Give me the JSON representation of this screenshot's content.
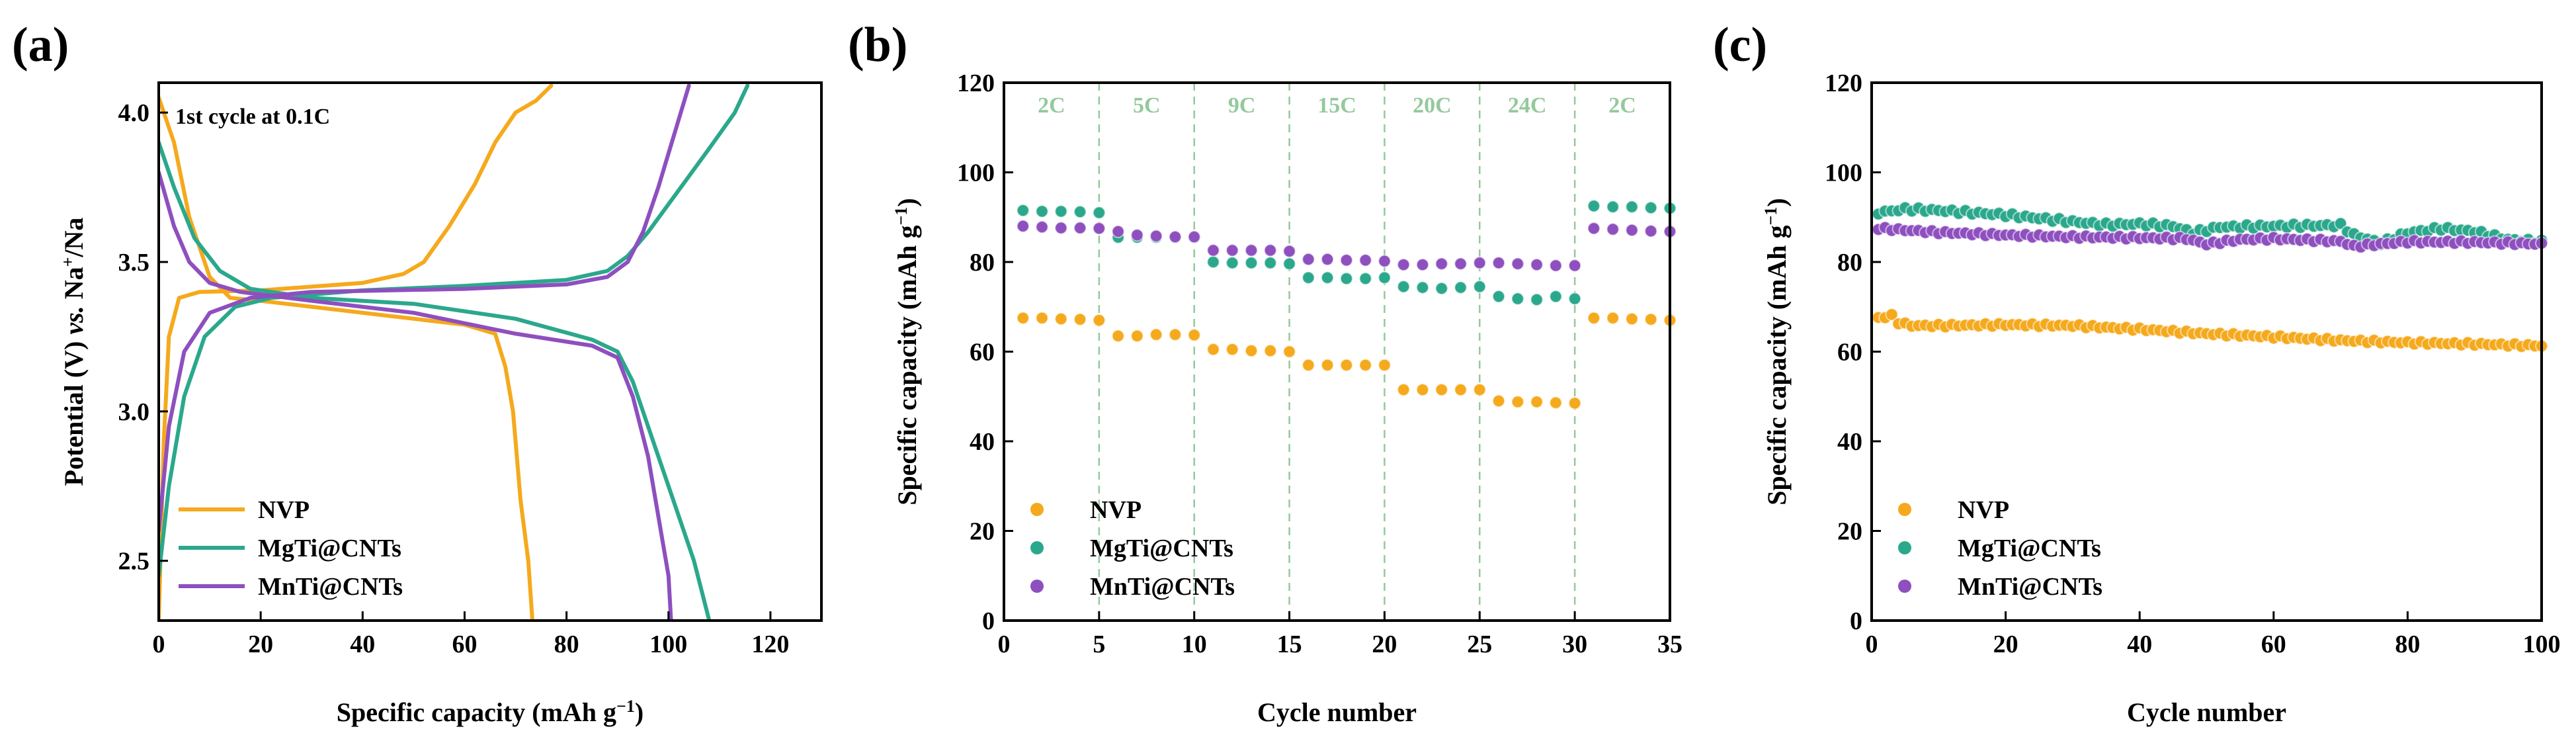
{
  "colors": {
    "NVP": "#F5A91C",
    "MgTi": "#2BA88C",
    "MnTi": "#8E4FBF",
    "rate": "#94C99C"
  },
  "chart_data": [
    {
      "panel": "(a)",
      "type": "line",
      "xlabel": "Specific capacity (mAh g",
      "xlabel_sup": "−1",
      "xlabel_end": ")",
      "ylabel_pre": "Potential (V) ",
      "ylabel_italic": "vs.",
      "ylabel_mid": " Na",
      "ylabel_sup": "+",
      "ylabel_end": "/Na",
      "xlim": [
        0,
        130
      ],
      "ylim": [
        2.3,
        4.1
      ],
      "xticks": [
        0,
        20,
        40,
        60,
        80,
        100,
        120
      ],
      "yticks": [
        2.5,
        3.0,
        3.5,
        4.0
      ],
      "ytick_labels": [
        "2.5",
        "3.0",
        "3.5",
        "4.0"
      ],
      "annotation": "1st cycle at 0.1C",
      "legend_position": "bottom-left",
      "series": [
        {
          "name": "NVP",
          "color_key": "NVP",
          "charge": [
            [
              0,
              2.3
            ],
            [
              1,
              2.9
            ],
            [
              2,
              3.25
            ],
            [
              4,
              3.38
            ],
            [
              8,
              3.4
            ],
            [
              20,
              3.405
            ],
            [
              40,
              3.43
            ],
            [
              48,
              3.46
            ],
            [
              52,
              3.5
            ],
            [
              57,
              3.62
            ],
            [
              62,
              3.76
            ],
            [
              66,
              3.9
            ],
            [
              70,
              4.0
            ],
            [
              74,
              4.04
            ],
            [
              77,
              4.09
            ]
          ],
          "discharge": [
            [
              0,
              4.05
            ],
            [
              3,
              3.9
            ],
            [
              6,
              3.65
            ],
            [
              10,
              3.45
            ],
            [
              14,
              3.38
            ],
            [
              20,
              3.37
            ],
            [
              30,
              3.35
            ],
            [
              45,
              3.32
            ],
            [
              60,
              3.29
            ],
            [
              66,
              3.26
            ],
            [
              68,
              3.15
            ],
            [
              69.5,
              3.0
            ],
            [
              71,
              2.7
            ],
            [
              72.5,
              2.5
            ],
            [
              73.3,
              2.3
            ]
          ]
        },
        {
          "name": "MgTi@CNTs",
          "color_key": "MgTi",
          "charge": [
            [
              0,
              2.45
            ],
            [
              2,
              2.75
            ],
            [
              5,
              3.05
            ],
            [
              9,
              3.25
            ],
            [
              15,
              3.35
            ],
            [
              22,
              3.38
            ],
            [
              40,
              3.405
            ],
            [
              60,
              3.42
            ],
            [
              80,
              3.44
            ],
            [
              88,
              3.47
            ],
            [
              92,
              3.52
            ],
            [
              96,
              3.6
            ],
            [
              102,
              3.74
            ],
            [
              108,
              3.88
            ],
            [
              113,
              4.0
            ],
            [
              115.5,
              4.09
            ]
          ],
          "discharge": [
            [
              0,
              3.9
            ],
            [
              3,
              3.75
            ],
            [
              7,
              3.58
            ],
            [
              12,
              3.47
            ],
            [
              18,
              3.41
            ],
            [
              30,
              3.38
            ],
            [
              50,
              3.36
            ],
            [
              70,
              3.31
            ],
            [
              85,
              3.24
            ],
            [
              90,
              3.2
            ],
            [
              93,
              3.1
            ],
            [
              97,
              2.9
            ],
            [
              101,
              2.7
            ],
            [
              105,
              2.5
            ],
            [
              108,
              2.3
            ]
          ]
        },
        {
          "name": "MnTi@CNTs",
          "color_key": "MnTi",
          "charge": [
            [
              0,
              2.6
            ],
            [
              2,
              2.95
            ],
            [
              5,
              3.2
            ],
            [
              10,
              3.33
            ],
            [
              18,
              3.38
            ],
            [
              30,
              3.4
            ],
            [
              60,
              3.41
            ],
            [
              80,
              3.425
            ],
            [
              88,
              3.45
            ],
            [
              92,
              3.5
            ],
            [
              95,
              3.6
            ],
            [
              98,
              3.75
            ],
            [
              101,
              3.92
            ],
            [
              104,
              4.09
            ]
          ],
          "discharge": [
            [
              0,
              3.8
            ],
            [
              3,
              3.62
            ],
            [
              6,
              3.5
            ],
            [
              10,
              3.43
            ],
            [
              16,
              3.4
            ],
            [
              30,
              3.37
            ],
            [
              50,
              3.33
            ],
            [
              70,
              3.26
            ],
            [
              85,
              3.22
            ],
            [
              90,
              3.18
            ],
            [
              93,
              3.05
            ],
            [
              96,
              2.85
            ],
            [
              98.5,
              2.6
            ],
            [
              100,
              2.45
            ],
            [
              100.5,
              2.3
            ]
          ]
        }
      ]
    },
    {
      "panel": "(b)",
      "type": "scatter",
      "xlabel": "Cycle number",
      "ylabel": "Specific capacity (mAh g",
      "ylabel_sup": "−1",
      "ylabel_end": ")",
      "xlim": [
        0,
        35
      ],
      "ylim": [
        0,
        120
      ],
      "xticks": [
        0,
        5,
        10,
        15,
        20,
        25,
        30,
        35
      ],
      "yticks": [
        0,
        20,
        40,
        60,
        80,
        100,
        120
      ],
      "legend_position": "bottom-left",
      "rate_boundaries": [
        5,
        10,
        15,
        20,
        25,
        30
      ],
      "rate_labels": [
        {
          "x": 2.5,
          "label": "2C"
        },
        {
          "x": 7.5,
          "label": "5C"
        },
        {
          "x": 12.5,
          "label": "9C"
        },
        {
          "x": 17.5,
          "label": "15C"
        },
        {
          "x": 22.5,
          "label": "20C"
        },
        {
          "x": 27.5,
          "label": "24C"
        },
        {
          "x": 32.5,
          "label": "2C"
        }
      ],
      "x": [
        1,
        2,
        3,
        4,
        5,
        6,
        7,
        8,
        9,
        10,
        11,
        12,
        13,
        14,
        15,
        16,
        17,
        18,
        19,
        20,
        21,
        22,
        23,
        24,
        25,
        26,
        27,
        28,
        29,
        30,
        31,
        32,
        33,
        34,
        35
      ],
      "series": [
        {
          "name": "NVP",
          "color_key": "NVP",
          "values": [
            67.5,
            67.5,
            67.3,
            67.2,
            67,
            63.5,
            63.5,
            63.8,
            63.8,
            63.7,
            60.5,
            60.5,
            60.2,
            60.2,
            60,
            57,
            57,
            57,
            57,
            57,
            51.5,
            51.5,
            51.5,
            51.5,
            51.5,
            49,
            48.8,
            48.8,
            48.6,
            48.5,
            67.5,
            67.5,
            67.3,
            67.2,
            67
          ]
        },
        {
          "name": "MgTi@CNTs",
          "color_key": "MgTi",
          "values": [
            91.5,
            91.3,
            91.3,
            91.2,
            91,
            85.5,
            85.5,
            85.5,
            85.5,
            85.5,
            80,
            79.8,
            79.8,
            79.8,
            79.6,
            76.5,
            76.5,
            76.3,
            76.3,
            76.5,
            74.5,
            74.3,
            74.1,
            74.3,
            74.5,
            72.3,
            71.8,
            71.6,
            72.3,
            71.8,
            92.5,
            92.3,
            92.3,
            92.1,
            92
          ]
        },
        {
          "name": "MnTi@CNTs",
          "color_key": "MnTi",
          "values": [
            88,
            87.8,
            87.6,
            87.6,
            87.5,
            86.8,
            86,
            85.8,
            85.6,
            85.6,
            82.6,
            82.6,
            82.6,
            82.6,
            82.4,
            80.6,
            80.6,
            80.4,
            80.4,
            80.2,
            79.4,
            79.4,
            79.6,
            79.6,
            79.8,
            79.8,
            79.6,
            79.4,
            79.2,
            79.2,
            87.5,
            87.3,
            87.1,
            86.9,
            86.8
          ]
        }
      ]
    },
    {
      "panel": "(c)",
      "type": "scatter",
      "xlabel": "Cycle number",
      "ylabel": "Specific capacity (mAh g",
      "ylabel_sup": "−1",
      "ylabel_end": ")",
      "xlim": [
        0,
        100
      ],
      "ylim": [
        0,
        120
      ],
      "xticks": [
        0,
        20,
        40,
        60,
        80,
        100
      ],
      "yticks": [
        0,
        20,
        40,
        60,
        80,
        100,
        120
      ],
      "legend_position": "bottom-left",
      "x_start": 1,
      "x_end": 100,
      "series": [
        {
          "name": "NVP",
          "color_key": "NVP",
          "anchors": [
            [
              1,
              67.5
            ],
            [
              2,
              67.8
            ],
            [
              3,
              68
            ],
            [
              4,
              66.5
            ],
            [
              6,
              65.8
            ],
            [
              10,
              65.8
            ],
            [
              20,
              66
            ],
            [
              30,
              65.8
            ],
            [
              40,
              65
            ],
            [
              50,
              64
            ],
            [
              60,
              63.3
            ],
            [
              70,
              62.5
            ],
            [
              80,
              62
            ],
            [
              90,
              61.7
            ],
            [
              100,
              61.3
            ]
          ],
          "jitter": 0.3
        },
        {
          "name": "MgTi@CNTs",
          "color_key": "MgTi",
          "anchors": [
            [
              1,
              91
            ],
            [
              5,
              91.8
            ],
            [
              10,
              91.5
            ],
            [
              20,
              90.5
            ],
            [
              30,
              89
            ],
            [
              35,
              88.3
            ],
            [
              40,
              88.5
            ],
            [
              45,
              88
            ],
            [
              48,
              86.5
            ],
            [
              52,
              87.8
            ],
            [
              60,
              88
            ],
            [
              70,
              88.2
            ],
            [
              72,
              86
            ],
            [
              76,
              84.2
            ],
            [
              80,
              86.5
            ],
            [
              85,
              87.5
            ],
            [
              90,
              86.8
            ],
            [
              95,
              85
            ],
            [
              100,
              84.5
            ]
          ],
          "jitter": 0.4
        },
        {
          "name": "MnTi@CNTs",
          "color_key": "MnTi",
          "anchors": [
            [
              1,
              87.5
            ],
            [
              10,
              86.6
            ],
            [
              20,
              86
            ],
            [
              30,
              85.6
            ],
            [
              40,
              85.4
            ],
            [
              47,
              85.2
            ],
            [
              50,
              84
            ],
            [
              55,
              85
            ],
            [
              60,
              85.2
            ],
            [
              70,
              84.6
            ],
            [
              72,
              83.5
            ],
            [
              80,
              84.5
            ],
            [
              90,
              84.4
            ],
            [
              100,
              84
            ]
          ],
          "jitter": 0.3
        }
      ]
    }
  ]
}
